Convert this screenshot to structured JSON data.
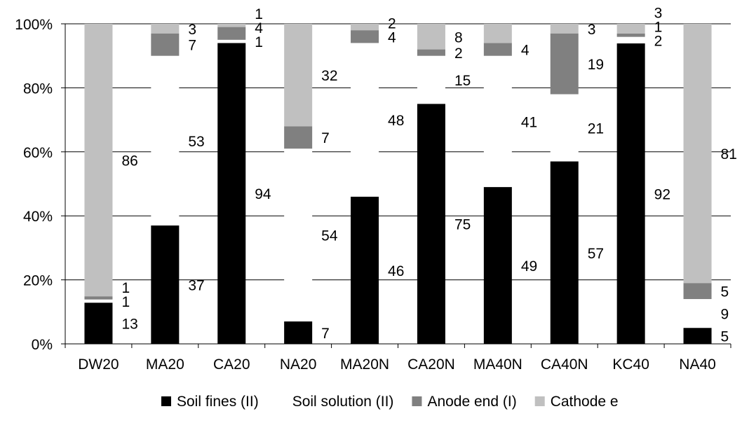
{
  "chart_data": {
    "type": "bar",
    "stacked": true,
    "percent_stacked": true,
    "categories": [
      "DW20",
      "MA20",
      "CA20",
      "NA20",
      "MA20N",
      "CA20N",
      "MA40N",
      "CA40N",
      "KC40",
      "NA40"
    ],
    "series": [
      {
        "name": "Soil fines (II)",
        "color": "#000000",
        "values": [
          13,
          37,
          94,
          7,
          46,
          75,
          49,
          57,
          92,
          5
        ],
        "labels": [
          "13",
          "37",
          "94",
          "7",
          "46",
          "75",
          "49",
          "57",
          "92",
          "5"
        ]
      },
      {
        "name": "Soil solution (II)",
        "color": "#ffffff",
        "values": [
          1,
          53,
          1,
          54,
          48,
          15,
          41,
          21,
          2,
          9
        ],
        "labels": [
          "1",
          "53",
          "1",
          "54",
          "48",
          "15",
          "41",
          "21",
          "2",
          "9"
        ]
      },
      {
        "name": "Anode end (I)",
        "color": "#808080",
        "values": [
          1,
          7,
          4,
          7,
          4,
          2,
          4,
          19,
          1,
          5
        ],
        "labels": [
          "1",
          "7",
          "4",
          "7",
          "4",
          "2",
          "4",
          "19",
          "1",
          "5"
        ]
      },
      {
        "name": "Cathode e",
        "color": "#c0c0c0",
        "values": [
          86,
          3,
          1,
          32,
          2,
          8,
          6,
          3,
          3,
          81
        ],
        "labels": [
          "86",
          "3",
          "1",
          "32",
          "2",
          "8",
          "",
          "3",
          "3",
          "81"
        ]
      }
    ],
    "y_ticks": [
      "0%",
      "20%",
      "40%",
      "60%",
      "80%",
      "100%"
    ],
    "ylim": [
      0,
      100
    ],
    "grid": true,
    "legend": "bottom"
  }
}
